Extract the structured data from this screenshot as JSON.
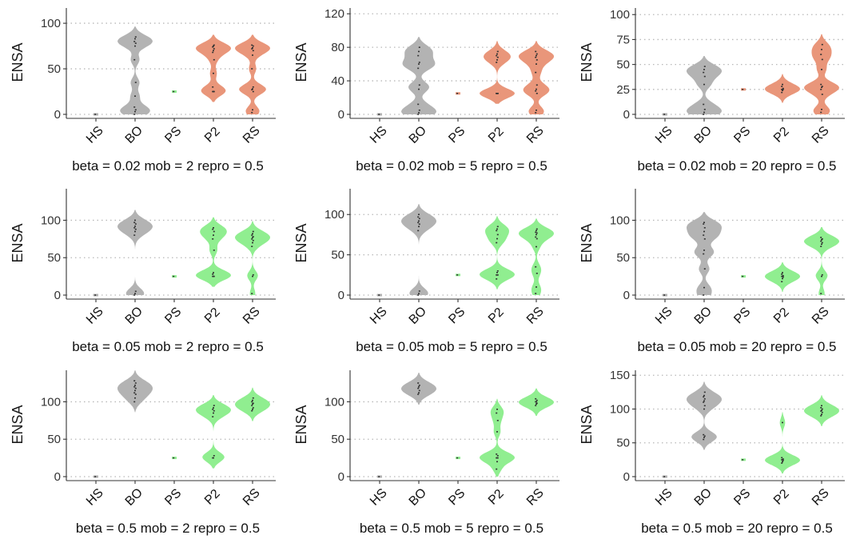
{
  "chart_data": [
    {
      "type": "violin",
      "caption": "beta = 0.02  mob = 2  repro = 0.5",
      "ylabel": "ENSA",
      "categories": [
        "HS",
        "BO",
        "PS",
        "P2",
        "RS"
      ],
      "ylim": [
        0,
        115
      ],
      "yticks": [
        0,
        50,
        100
      ],
      "series": [
        {
          "category": "HS",
          "fill": "#b3b3b3",
          "points": [
            0
          ]
        },
        {
          "category": "BO",
          "fill": "#b3b3b3",
          "points": [
            0,
            3,
            5,
            8,
            20,
            35,
            60,
            75,
            78,
            80,
            83,
            85
          ]
        },
        {
          "category": "PS",
          "fill": "#90ee90",
          "points": [
            25
          ]
        },
        {
          "category": "P2",
          "fill": "#e9967a",
          "points": [
            25,
            25,
            25,
            30,
            45,
            60,
            68,
            70,
            72,
            74,
            75,
            76
          ]
        },
        {
          "category": "RS",
          "fill": "#e9967a",
          "points": [
            2,
            5,
            25,
            27,
            28,
            30,
            50,
            65,
            70,
            72,
            73,
            75,
            76
          ]
        }
      ]
    },
    {
      "type": "violin",
      "caption": "beta = 0.02  mob = 5  repro = 0.5",
      "ylabel": "ENSA",
      "categories": [
        "HS",
        "BO",
        "PS",
        "P2",
        "RS"
      ],
      "ylim": [
        0,
        125
      ],
      "yticks": [
        0,
        40,
        80,
        120
      ],
      "series": [
        {
          "category": "HS",
          "fill": "#b3b3b3",
          "points": [
            0
          ]
        },
        {
          "category": "BO",
          "fill": "#b3b3b3",
          "points": [
            0,
            2,
            5,
            12,
            30,
            35,
            55,
            60,
            62,
            70,
            75,
            80
          ]
        },
        {
          "category": "PS",
          "fill": "#e9967a",
          "points": [
            25
          ]
        },
        {
          "category": "P2",
          "fill": "#e9967a",
          "points": [
            25,
            25,
            25,
            25,
            25,
            25,
            62,
            65,
            68,
            70,
            72,
            75
          ]
        },
        {
          "category": "RS",
          "fill": "#e9967a",
          "points": [
            2,
            5,
            25,
            28,
            30,
            35,
            50,
            60,
            65,
            68,
            70,
            72,
            75
          ]
        }
      ]
    },
    {
      "type": "violin",
      "caption": "beta = 0.02  mob = 20  repro = 0.5",
      "ylabel": "ENSA",
      "categories": [
        "HS",
        "BO",
        "PS",
        "P2",
        "RS"
      ],
      "ylim": [
        0,
        105
      ],
      "yticks": [
        0,
        25,
        50,
        75,
        100
      ],
      "series": [
        {
          "category": "HS",
          "fill": "#b3b3b3",
          "points": [
            0
          ]
        },
        {
          "category": "BO",
          "fill": "#b3b3b3",
          "points": [
            0,
            2,
            5,
            10,
            30,
            38,
            42,
            45,
            48
          ]
        },
        {
          "category": "PS",
          "fill": "#e9967a",
          "points": [
            25
          ]
        },
        {
          "category": "P2",
          "fill": "#e9967a",
          "points": [
            22,
            24,
            25,
            25,
            25,
            26,
            28,
            30
          ]
        },
        {
          "category": "RS",
          "fill": "#e9967a",
          "points": [
            2,
            5,
            20,
            25,
            27,
            28,
            30,
            45,
            55,
            60,
            65,
            70
          ]
        }
      ]
    },
    {
      "type": "violin",
      "caption": "beta = 0.05  mob = 2  repro = 0.5",
      "ylabel": "ENSA",
      "categories": [
        "HS",
        "BO",
        "PS",
        "P2",
        "RS"
      ],
      "ylim": [
        0,
        140
      ],
      "yticks": [
        0,
        50,
        100
      ],
      "series": [
        {
          "category": "HS",
          "fill": "#b3b3b3",
          "points": [
            0
          ]
        },
        {
          "category": "BO",
          "fill": "#b3b3b3",
          "points": [
            0,
            2,
            5,
            80,
            85,
            88,
            90,
            92,
            95,
            97,
            100
          ]
        },
        {
          "category": "PS",
          "fill": "#90ee90",
          "points": [
            25
          ]
        },
        {
          "category": "P2",
          "fill": "#90ee90",
          "points": [
            25,
            25,
            25,
            28,
            30,
            60,
            75,
            80,
            85,
            88,
            90
          ]
        },
        {
          "category": "RS",
          "fill": "#90ee90",
          "points": [
            2,
            25,
            27,
            65,
            70,
            73,
            75,
            77,
            78,
            80,
            82,
            85
          ]
        }
      ]
    },
    {
      "type": "violin",
      "caption": "beta = 0.05  mob = 5  repro = 0.5",
      "ylabel": "ENSA",
      "categories": [
        "HS",
        "BO",
        "PS",
        "P2",
        "RS"
      ],
      "ylim": [
        0,
        130
      ],
      "yticks": [
        0,
        50,
        100
      ],
      "series": [
        {
          "category": "HS",
          "fill": "#b3b3b3",
          "points": [
            0
          ]
        },
        {
          "category": "BO",
          "fill": "#b3b3b3",
          "points": [
            0,
            2,
            5,
            80,
            85,
            88,
            90,
            92,
            95,
            97,
            100
          ]
        },
        {
          "category": "PS",
          "fill": "#90ee90",
          "points": [
            25
          ]
        },
        {
          "category": "P2",
          "fill": "#90ee90",
          "points": [
            20,
            25,
            25,
            25,
            28,
            30,
            65,
            70,
            75,
            80,
            82,
            85
          ]
        },
        {
          "category": "RS",
          "fill": "#90ee90",
          "points": [
            2,
            10,
            27,
            35,
            60,
            70,
            72,
            75,
            77,
            78,
            80,
            82
          ]
        }
      ]
    },
    {
      "type": "violin",
      "caption": "beta = 0.05  mob = 20  repro = 0.5",
      "ylabel": "ENSA",
      "categories": [
        "HS",
        "BO",
        "PS",
        "P2",
        "RS"
      ],
      "ylim": [
        0,
        140
      ],
      "yticks": [
        0,
        50,
        100
      ],
      "series": [
        {
          "category": "HS",
          "fill": "#b3b3b3",
          "points": [
            0
          ]
        },
        {
          "category": "BO",
          "fill": "#b3b3b3",
          "points": [
            0,
            10,
            35,
            55,
            60,
            75,
            80,
            85,
            90,
            95,
            97
          ]
        },
        {
          "category": "PS",
          "fill": "#90ee90",
          "points": [
            25
          ]
        },
        {
          "category": "P2",
          "fill": "#90ee90",
          "points": [
            18,
            22,
            24,
            25,
            25,
            26,
            28,
            30
          ]
        },
        {
          "category": "RS",
          "fill": "#90ee90",
          "points": [
            2,
            25,
            27,
            65,
            68,
            70,
            72,
            74,
            75,
            77
          ]
        }
      ]
    },
    {
      "type": "violin",
      "caption": "beta = 0.5  mob = 2  repro = 0.5",
      "ylabel": "ENSA",
      "categories": [
        "HS",
        "BO",
        "PS",
        "P2",
        "RS"
      ],
      "ylim": [
        0,
        140
      ],
      "yticks": [
        0,
        50,
        100
      ],
      "series": [
        {
          "category": "HS",
          "fill": "#b3b3b3",
          "points": [
            0
          ]
        },
        {
          "category": "BO",
          "fill": "#b3b3b3",
          "points": [
            100,
            105,
            110,
            112,
            115,
            118,
            120,
            122,
            125,
            128
          ]
        },
        {
          "category": "PS",
          "fill": "#90ee90",
          "points": [
            25
          ]
        },
        {
          "category": "P2",
          "fill": "#90ee90",
          "points": [
            25,
            25,
            28,
            80,
            85,
            88,
            90,
            92,
            95
          ]
        },
        {
          "category": "RS",
          "fill": "#90ee90",
          "points": [
            88,
            90,
            92,
            95,
            97,
            98,
            100,
            102,
            105
          ]
        }
      ]
    },
    {
      "type": "violin",
      "caption": "beta = 0.5  mob = 5  repro = 0.5",
      "ylabel": "ENSA",
      "categories": [
        "HS",
        "BO",
        "PS",
        "P2",
        "RS"
      ],
      "ylim": [
        0,
        140
      ],
      "yticks": [
        0,
        50,
        100
      ],
      "series": [
        {
          "category": "HS",
          "fill": "#b3b3b3",
          "points": [
            0
          ]
        },
        {
          "category": "BO",
          "fill": "#b3b3b3",
          "points": [
            110,
            112,
            115,
            118,
            120,
            122,
            125
          ]
        },
        {
          "category": "PS",
          "fill": "#90ee90",
          "points": [
            25
          ]
        },
        {
          "category": "P2",
          "fill": "#90ee90",
          "points": [
            10,
            20,
            25,
            25,
            25,
            28,
            30,
            60,
            75,
            85,
            90
          ]
        },
        {
          "category": "RS",
          "fill": "#90ee90",
          "points": [
            95,
            97,
            98,
            100,
            100,
            102,
            104
          ]
        }
      ]
    },
    {
      "type": "violin",
      "caption": "beta = 0.5  mob = 20  repro = 0.5",
      "ylabel": "ENSA",
      "categories": [
        "HS",
        "BO",
        "PS",
        "P2",
        "RS"
      ],
      "ylim": [
        0,
        155
      ],
      "yticks": [
        0,
        50,
        100,
        150
      ],
      "series": [
        {
          "category": "HS",
          "fill": "#b3b3b3",
          "points": [
            0
          ]
        },
        {
          "category": "BO",
          "fill": "#b3b3b3",
          "points": [
            55,
            58,
            60,
            62,
            100,
            105,
            110,
            112,
            115,
            118,
            120,
            125
          ]
        },
        {
          "category": "PS",
          "fill": "#90ee90",
          "points": [
            25
          ]
        },
        {
          "category": "P2",
          "fill": "#90ee90",
          "points": [
            20,
            22,
            24,
            25,
            25,
            26,
            28,
            80
          ]
        },
        {
          "category": "RS",
          "fill": "#90ee90",
          "points": [
            90,
            92,
            95,
            97,
            98,
            100,
            102,
            105
          ]
        }
      ]
    }
  ]
}
